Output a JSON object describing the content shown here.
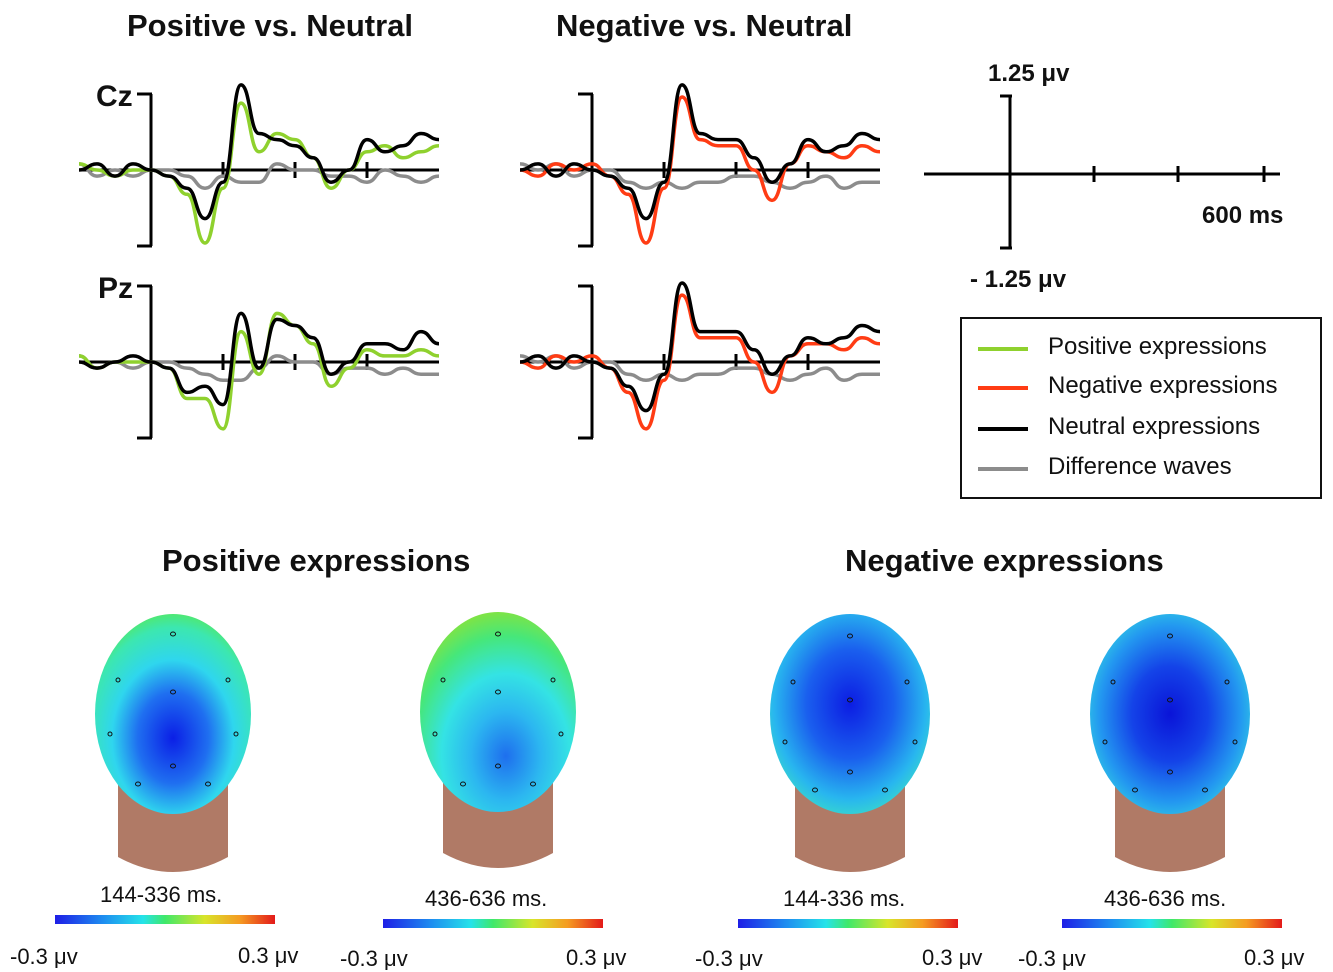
{
  "titles": {
    "positive_vs_neutral": "Positive vs. Neutral",
    "negative_vs_neutral": "Negative vs. Neutral",
    "positive_expressions": "Positive expressions",
    "negative_expressions": "Negative expressions"
  },
  "electrodes": [
    "Cz",
    "Pz"
  ],
  "scale": {
    "amplitude_top": "1.25 μv",
    "amplitude_bottom": "- 1.25 μv",
    "time": "600 ms"
  },
  "legend": [
    {
      "label": "Positive expressions",
      "color": "#8fd12e"
    },
    {
      "label": "Negative expressions",
      "color": "#ff3c14"
    },
    {
      "label": "Neutral expressions",
      "color": "#000000"
    },
    {
      "label": "Difference waves",
      "color": "#8c8c8c"
    }
  ],
  "topomaps": [
    {
      "window": "144-336 ms.",
      "min": "-0.3 μv",
      "max": "0.3 μv"
    },
    {
      "window": "436-636 ms.",
      "min": "-0.3 μv",
      "max": "0.3 μv"
    },
    {
      "window": "144-336 ms.",
      "min": "-0.3 μv",
      "max": "0.3 μv"
    },
    {
      "window": "436-636 ms.",
      "min": "-0.3 μv",
      "max": "0.3 μv"
    }
  ],
  "chart_data": {
    "type": "line",
    "xlabel": "",
    "ylabel": "",
    "x_unit": "ms",
    "y_unit": "μv",
    "xlim": [
      -200,
      800
    ],
    "ylim": [
      -1.25,
      1.25
    ],
    "x": [
      -200,
      -150,
      -100,
      -50,
      0,
      50,
      100,
      150,
      200,
      250,
      300,
      350,
      400,
      450,
      500,
      550,
      600,
      650,
      700,
      750,
      800
    ],
    "panels": [
      {
        "comparison": "Positive vs. Neutral",
        "electrode": "Cz",
        "series": [
          {
            "name": "Positive expressions",
            "values": [
              0.1,
              0.0,
              -0.1,
              0.0,
              0.0,
              -0.1,
              -0.4,
              -1.2,
              -0.3,
              1.1,
              0.3,
              0.6,
              0.5,
              0.2,
              -0.3,
              0.0,
              0.3,
              0.4,
              0.2,
              0.3,
              0.4
            ]
          },
          {
            "name": "Neutral expressions",
            "values": [
              0.0,
              0.1,
              -0.1,
              0.1,
              0.0,
              -0.1,
              -0.3,
              -0.8,
              -0.2,
              1.4,
              0.6,
              0.5,
              0.4,
              0.2,
              -0.2,
              0.0,
              0.5,
              0.3,
              0.4,
              0.6,
              0.5
            ]
          },
          {
            "name": "Difference waves",
            "values": [
              0.1,
              -0.1,
              0.0,
              -0.1,
              0.0,
              0.0,
              -0.1,
              -0.3,
              -0.1,
              -0.2,
              -0.2,
              0.1,
              0.0,
              0.0,
              -0.1,
              -0.1,
              -0.2,
              0.0,
              -0.1,
              -0.2,
              -0.1
            ]
          }
        ]
      },
      {
        "comparison": "Positive vs. Neutral",
        "electrode": "Pz",
        "series": [
          {
            "name": "Positive expressions",
            "values": [
              0.1,
              -0.1,
              0.0,
              0.0,
              0.0,
              -0.1,
              -0.6,
              -0.6,
              -1.1,
              0.5,
              -0.2,
              0.8,
              0.6,
              0.3,
              -0.4,
              -0.1,
              0.2,
              0.1,
              0.1,
              0.2,
              0.1
            ]
          },
          {
            "name": "Neutral expressions",
            "values": [
              0.0,
              -0.1,
              0.0,
              0.1,
              0.0,
              -0.1,
              -0.5,
              -0.4,
              -0.7,
              0.8,
              -0.1,
              0.7,
              0.6,
              0.4,
              -0.2,
              0.0,
              0.3,
              0.3,
              0.2,
              0.5,
              0.3
            ]
          },
          {
            "name": "Difference waves",
            "values": [
              0.1,
              -0.1,
              0.0,
              -0.1,
              0.0,
              0.0,
              -0.1,
              -0.2,
              -0.3,
              -0.3,
              -0.1,
              0.1,
              0.0,
              0.0,
              -0.2,
              -0.1,
              -0.1,
              -0.2,
              -0.1,
              -0.2,
              -0.2
            ]
          }
        ]
      },
      {
        "comparison": "Negative vs. Neutral",
        "electrode": "Cz",
        "series": [
          {
            "name": "Negative expressions",
            "values": [
              0.0,
              -0.1,
              0.1,
              0.0,
              0.1,
              -0.1,
              -0.4,
              -1.2,
              -0.3,
              1.2,
              0.5,
              0.4,
              0.4,
              0.0,
              -0.5,
              0.1,
              0.4,
              0.3,
              0.2,
              0.4,
              0.3
            ]
          },
          {
            "name": "Neutral expressions",
            "values": [
              0.0,
              0.1,
              -0.1,
              0.1,
              0.0,
              -0.1,
              -0.3,
              -0.8,
              -0.2,
              1.4,
              0.6,
              0.5,
              0.5,
              0.2,
              -0.2,
              0.1,
              0.5,
              0.3,
              0.4,
              0.6,
              0.5
            ]
          },
          {
            "name": "Difference waves",
            "values": [
              0.1,
              0.0,
              0.1,
              -0.1,
              0.0,
              0.0,
              -0.2,
              -0.3,
              -0.2,
              -0.3,
              -0.2,
              -0.2,
              -0.1,
              -0.1,
              -0.2,
              -0.3,
              -0.2,
              -0.1,
              -0.3,
              -0.2,
              -0.2
            ]
          }
        ]
      },
      {
        "comparison": "Negative vs. Neutral",
        "electrode": "Pz",
        "series": [
          {
            "name": "Negative expressions",
            "values": [
              0.0,
              -0.1,
              0.1,
              0.0,
              0.1,
              -0.1,
              -0.5,
              -1.1,
              -0.3,
              1.1,
              0.4,
              0.4,
              0.4,
              0.0,
              -0.5,
              0.1,
              0.3,
              0.3,
              0.2,
              0.4,
              0.3
            ]
          },
          {
            "name": "Neutral expressions",
            "values": [
              0.0,
              0.1,
              -0.1,
              0.1,
              0.0,
              -0.1,
              -0.4,
              -0.8,
              -0.2,
              1.3,
              0.5,
              0.5,
              0.5,
              0.2,
              -0.2,
              0.1,
              0.4,
              0.3,
              0.4,
              0.6,
              0.5
            ]
          },
          {
            "name": "Difference waves",
            "values": [
              0.1,
              0.0,
              0.1,
              -0.1,
              0.0,
              0.0,
              -0.2,
              -0.3,
              -0.2,
              -0.3,
              -0.2,
              -0.2,
              -0.1,
              -0.1,
              -0.2,
              -0.3,
              -0.2,
              -0.1,
              -0.3,
              -0.2,
              -0.2
            ]
          }
        ]
      }
    ]
  }
}
